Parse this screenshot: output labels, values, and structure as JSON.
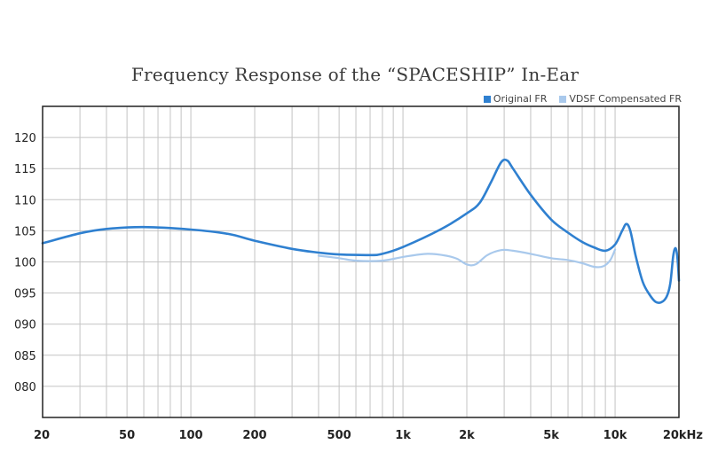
{
  "chart_data": {
    "type": "line",
    "title": "Frequency Response of the “SPACESHIP” In-Ear",
    "xlabel": "",
    "ylabel": "",
    "xscale": "log",
    "xlim": [
      20,
      20000
    ],
    "ylim": [
      75,
      125
    ],
    "grid": true,
    "legend_position": "top-right",
    "x_tick_values": [
      20,
      50,
      100,
      200,
      500,
      1000,
      2000,
      5000,
      10000,
      20000
    ],
    "x_tick_labels": [
      "20",
      "50",
      "100",
      "200",
      "500",
      "1k",
      "2k",
      "5k",
      "10k",
      "20kHz"
    ],
    "y_tick_values": [
      80,
      85,
      90,
      95,
      100,
      105,
      110,
      115,
      120
    ],
    "y_tick_labels": [
      "080",
      "085",
      "090",
      "095",
      "100",
      "105",
      "110",
      "115",
      "120"
    ],
    "series": [
      {
        "name": "Original FR",
        "color": "#2f80d0",
        "points": [
          [
            20,
            103.0
          ],
          [
            30,
            104.6
          ],
          [
            40,
            105.3
          ],
          [
            60,
            105.6
          ],
          [
            100,
            105.2
          ],
          [
            150,
            104.5
          ],
          [
            200,
            103.4
          ],
          [
            300,
            102.1
          ],
          [
            400,
            101.5
          ],
          [
            500,
            101.2
          ],
          [
            700,
            101.1
          ],
          [
            800,
            101.3
          ],
          [
            1000,
            102.4
          ],
          [
            1500,
            105.2
          ],
          [
            2000,
            107.8
          ],
          [
            2300,
            109.5
          ],
          [
            2600,
            112.8
          ],
          [
            2900,
            116.0
          ],
          [
            3100,
            116.3
          ],
          [
            3300,
            115.0
          ],
          [
            4000,
            110.8
          ],
          [
            5000,
            106.8
          ],
          [
            6000,
            104.7
          ],
          [
            7000,
            103.2
          ],
          [
            8000,
            102.3
          ],
          [
            9000,
            101.8
          ],
          [
            10000,
            102.8
          ],
          [
            10800,
            105.0
          ],
          [
            11300,
            106.1
          ],
          [
            11800,
            105.0
          ],
          [
            12500,
            101.0
          ],
          [
            13500,
            96.8
          ],
          [
            14500,
            94.8
          ],
          [
            15500,
            93.6
          ],
          [
            16500,
            93.5
          ],
          [
            17500,
            94.4
          ],
          [
            18200,
            96.5
          ],
          [
            18800,
            101.0
          ],
          [
            19300,
            102.2
          ],
          [
            19700,
            100.5
          ],
          [
            20000,
            97.0
          ]
        ]
      },
      {
        "name": "VDSF Compensated FR",
        "color": "#a9c9ec",
        "points": [
          [
            400,
            101.0
          ],
          [
            500,
            100.6
          ],
          [
            600,
            100.2
          ],
          [
            800,
            100.2
          ],
          [
            1000,
            100.8
          ],
          [
            1300,
            101.3
          ],
          [
            1600,
            101.0
          ],
          [
            1800,
            100.5
          ],
          [
            2000,
            99.6
          ],
          [
            2200,
            99.6
          ],
          [
            2500,
            101.1
          ],
          [
            2900,
            101.9
          ],
          [
            3300,
            101.8
          ],
          [
            4000,
            101.3
          ],
          [
            5000,
            100.6
          ],
          [
            6000,
            100.3
          ],
          [
            7000,
            99.8
          ],
          [
            8000,
            99.2
          ],
          [
            8800,
            99.3
          ],
          [
            9500,
            100.3
          ],
          [
            10000,
            102.0
          ]
        ]
      }
    ]
  }
}
